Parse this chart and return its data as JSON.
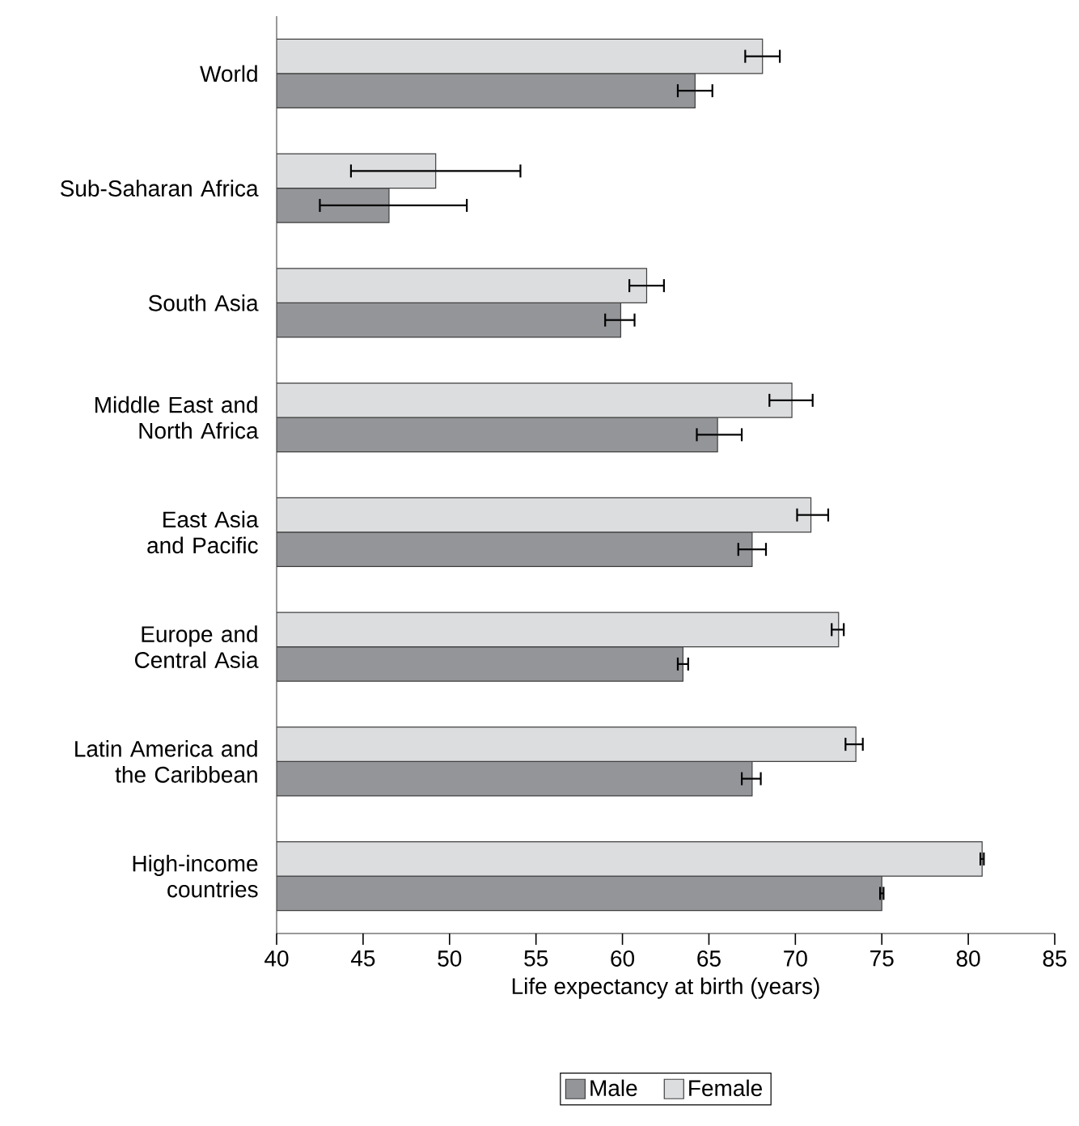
{
  "chart_data": {
    "type": "bar",
    "orientation": "horizontal",
    "categories": [
      "World",
      "Sub-Saharan Africa",
      "South Asia",
      "Middle East and North Africa",
      "East Asia and Pacific",
      "Europe and Central Asia",
      "Latin America and the Caribbean",
      "High-income countries"
    ],
    "series": [
      {
        "name": "Male",
        "color": "#939598",
        "values": [
          64.2,
          46.5,
          59.9,
          65.5,
          67.5,
          63.5,
          67.5,
          75.0
        ],
        "errors": [
          [
            63.2,
            65.2
          ],
          [
            42.5,
            51.0
          ],
          [
            59.0,
            60.7
          ],
          [
            64.3,
            66.9
          ],
          [
            66.7,
            68.3
          ],
          [
            63.2,
            63.8
          ],
          [
            66.9,
            68.0
          ],
          [
            74.9,
            75.1
          ]
        ]
      },
      {
        "name": "Female",
        "color": "#dcdddf",
        "values": [
          68.1,
          49.2,
          61.4,
          69.8,
          70.9,
          72.5,
          73.5,
          80.8
        ],
        "errors": [
          [
            67.1,
            69.1
          ],
          [
            44.3,
            54.1
          ],
          [
            60.4,
            62.4
          ],
          [
            68.5,
            71.0
          ],
          [
            70.1,
            71.9
          ],
          [
            72.1,
            72.8
          ],
          [
            72.9,
            73.9
          ],
          [
            80.7,
            80.9
          ]
        ]
      }
    ],
    "xlim": [
      40,
      85
    ],
    "xticks": [
      40,
      45,
      50,
      55,
      60,
      65,
      70,
      75,
      80,
      85
    ],
    "xlabel": "Life expectancy at birth (years)",
    "legend": "bottom"
  }
}
